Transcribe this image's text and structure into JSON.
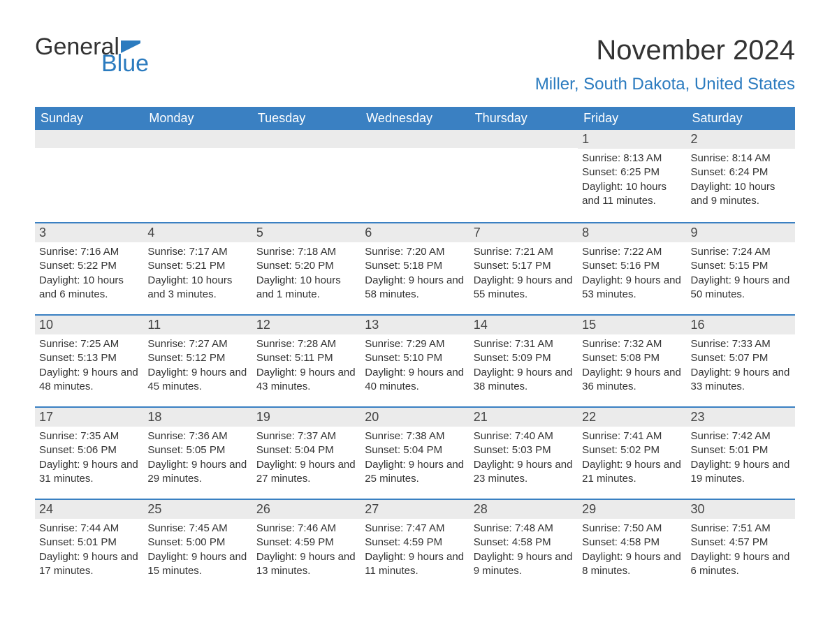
{
  "brand": {
    "part1": "General",
    "part2": "Blue",
    "flag_color": "#2b7bbf"
  },
  "title": "November 2024",
  "location": "Miller, South Dakota, United States",
  "colors": {
    "header_bg": "#3a80c2",
    "header_text": "#ffffff",
    "daynum_bg": "#ebebeb",
    "row_border": "#3a80c2",
    "accent": "#2b7bbf",
    "text": "#333333",
    "background": "#ffffff"
  },
  "weekdays": [
    "Sunday",
    "Monday",
    "Tuesday",
    "Wednesday",
    "Thursday",
    "Friday",
    "Saturday"
  ],
  "weeks": [
    [
      null,
      null,
      null,
      null,
      null,
      {
        "n": "1",
        "sunrise": "8:13 AM",
        "sunset": "6:25 PM",
        "daylight": "10 hours and 11 minutes."
      },
      {
        "n": "2",
        "sunrise": "8:14 AM",
        "sunset": "6:24 PM",
        "daylight": "10 hours and 9 minutes."
      }
    ],
    [
      {
        "n": "3",
        "sunrise": "7:16 AM",
        "sunset": "5:22 PM",
        "daylight": "10 hours and 6 minutes."
      },
      {
        "n": "4",
        "sunrise": "7:17 AM",
        "sunset": "5:21 PM",
        "daylight": "10 hours and 3 minutes."
      },
      {
        "n": "5",
        "sunrise": "7:18 AM",
        "sunset": "5:20 PM",
        "daylight": "10 hours and 1 minute."
      },
      {
        "n": "6",
        "sunrise": "7:20 AM",
        "sunset": "5:18 PM",
        "daylight": "9 hours and 58 minutes."
      },
      {
        "n": "7",
        "sunrise": "7:21 AM",
        "sunset": "5:17 PM",
        "daylight": "9 hours and 55 minutes."
      },
      {
        "n": "8",
        "sunrise": "7:22 AM",
        "sunset": "5:16 PM",
        "daylight": "9 hours and 53 minutes."
      },
      {
        "n": "9",
        "sunrise": "7:24 AM",
        "sunset": "5:15 PM",
        "daylight": "9 hours and 50 minutes."
      }
    ],
    [
      {
        "n": "10",
        "sunrise": "7:25 AM",
        "sunset": "5:13 PM",
        "daylight": "9 hours and 48 minutes."
      },
      {
        "n": "11",
        "sunrise": "7:27 AM",
        "sunset": "5:12 PM",
        "daylight": "9 hours and 45 minutes."
      },
      {
        "n": "12",
        "sunrise": "7:28 AM",
        "sunset": "5:11 PM",
        "daylight": "9 hours and 43 minutes."
      },
      {
        "n": "13",
        "sunrise": "7:29 AM",
        "sunset": "5:10 PM",
        "daylight": "9 hours and 40 minutes."
      },
      {
        "n": "14",
        "sunrise": "7:31 AM",
        "sunset": "5:09 PM",
        "daylight": "9 hours and 38 minutes."
      },
      {
        "n": "15",
        "sunrise": "7:32 AM",
        "sunset": "5:08 PM",
        "daylight": "9 hours and 36 minutes."
      },
      {
        "n": "16",
        "sunrise": "7:33 AM",
        "sunset": "5:07 PM",
        "daylight": "9 hours and 33 minutes."
      }
    ],
    [
      {
        "n": "17",
        "sunrise": "7:35 AM",
        "sunset": "5:06 PM",
        "daylight": "9 hours and 31 minutes."
      },
      {
        "n": "18",
        "sunrise": "7:36 AM",
        "sunset": "5:05 PM",
        "daylight": "9 hours and 29 minutes."
      },
      {
        "n": "19",
        "sunrise": "7:37 AM",
        "sunset": "5:04 PM",
        "daylight": "9 hours and 27 minutes."
      },
      {
        "n": "20",
        "sunrise": "7:38 AM",
        "sunset": "5:04 PM",
        "daylight": "9 hours and 25 minutes."
      },
      {
        "n": "21",
        "sunrise": "7:40 AM",
        "sunset": "5:03 PM",
        "daylight": "9 hours and 23 minutes."
      },
      {
        "n": "22",
        "sunrise": "7:41 AM",
        "sunset": "5:02 PM",
        "daylight": "9 hours and 21 minutes."
      },
      {
        "n": "23",
        "sunrise": "7:42 AM",
        "sunset": "5:01 PM",
        "daylight": "9 hours and 19 minutes."
      }
    ],
    [
      {
        "n": "24",
        "sunrise": "7:44 AM",
        "sunset": "5:01 PM",
        "daylight": "9 hours and 17 minutes."
      },
      {
        "n": "25",
        "sunrise": "7:45 AM",
        "sunset": "5:00 PM",
        "daylight": "9 hours and 15 minutes."
      },
      {
        "n": "26",
        "sunrise": "7:46 AM",
        "sunset": "4:59 PM",
        "daylight": "9 hours and 13 minutes."
      },
      {
        "n": "27",
        "sunrise": "7:47 AM",
        "sunset": "4:59 PM",
        "daylight": "9 hours and 11 minutes."
      },
      {
        "n": "28",
        "sunrise": "7:48 AM",
        "sunset": "4:58 PM",
        "daylight": "9 hours and 9 minutes."
      },
      {
        "n": "29",
        "sunrise": "7:50 AM",
        "sunset": "4:58 PM",
        "daylight": "9 hours and 8 minutes."
      },
      {
        "n": "30",
        "sunrise": "7:51 AM",
        "sunset": "4:57 PM",
        "daylight": "9 hours and 6 minutes."
      }
    ]
  ],
  "labels": {
    "sunrise_prefix": "Sunrise: ",
    "sunset_prefix": "Sunset: ",
    "daylight_prefix": "Daylight: "
  }
}
